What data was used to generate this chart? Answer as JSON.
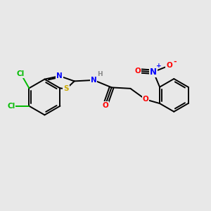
{
  "bg_color": "#e8e8e8",
  "bond_color": "#000000",
  "bond_lw": 1.4,
  "atom_colors": {
    "C": "#000000",
    "N": "#0000ff",
    "O": "#ff0000",
    "S": "#ccaa00",
    "Cl": "#00bb00",
    "H": "#888888",
    "plus": "#0000ff",
    "minus": "#ff0000"
  },
  "font_size": 7.5
}
